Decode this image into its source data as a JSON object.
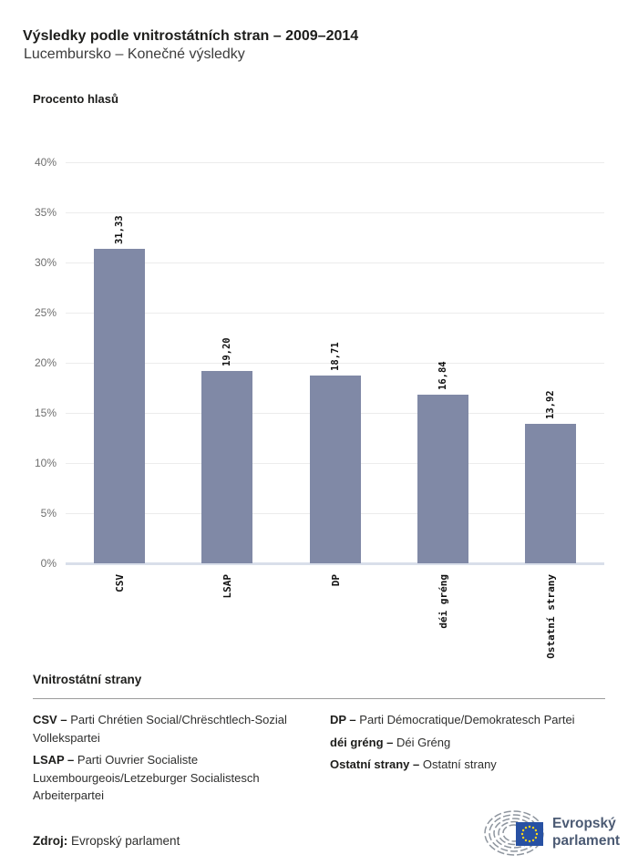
{
  "header": {
    "title": "Výsledky podle vnitrostátních stran – 2009–2014",
    "subtitle": "Lucembursko – Konečné výsledky"
  },
  "chart_data": {
    "type": "bar",
    "title": "Výsledky podle vnitrostátních stran – 2009–2014",
    "subtitle": "Lucembursko – Konečné výsledky",
    "ylabel": "Procento hlasů",
    "xlabel": "",
    "categories": [
      "CSV",
      "LSAP",
      "DP",
      "déi gréng",
      "Ostatní strany"
    ],
    "values": [
      31.33,
      19.2,
      18.71,
      16.84,
      13.92
    ],
    "value_labels": [
      "31,33",
      "19,20",
      "18,71",
      "16,84",
      "13,92"
    ],
    "ylim": [
      0,
      40
    ],
    "ytick_step": 5,
    "ytick_labels": [
      "0%",
      "5%",
      "10%",
      "15%",
      "20%",
      "25%",
      "30%",
      "35%",
      "40%"
    ],
    "grid": true,
    "legend_position": "none",
    "bar_color": "#8089a6"
  },
  "party_legend": {
    "heading": "Vnitrostátní strany",
    "columns": [
      {
        "entries": [
          {
            "term": "CSV –",
            "definition": "Parti Chrétien Social/Chrëschtlech-Sozial Vollekspartei"
          },
          {
            "term": "LSAP –",
            "definition": "Parti Ouvrier Socialiste Luxembourgeois/Letzeburger Socialistesch Arbeiterpartei"
          }
        ]
      },
      {
        "entries": [
          {
            "term": "DP –",
            "definition": "Parti Démocratique/Demokratesch Partei"
          },
          {
            "term": "déi gréng –",
            "definition": "Déi Gréng"
          },
          {
            "term": "Ostatní strany –",
            "definition": "Ostatní strany"
          }
        ]
      }
    ]
  },
  "source": {
    "label": "Zdroj:",
    "text": "Evropský parlament"
  },
  "logo": {
    "line1": "Evropský",
    "line2": "parlament",
    "flag_color": "#2851a3",
    "star_color": "#ffd617",
    "hemicycle_color": "#8e959e",
    "text_color": "#4b5a73"
  },
  "colors": {
    "bar": "#8089a6",
    "gridline": "#ececec",
    "baseline": "#d9dfea",
    "tick_text": "#6f6f6f",
    "text_dark": "#1d1d1b"
  }
}
